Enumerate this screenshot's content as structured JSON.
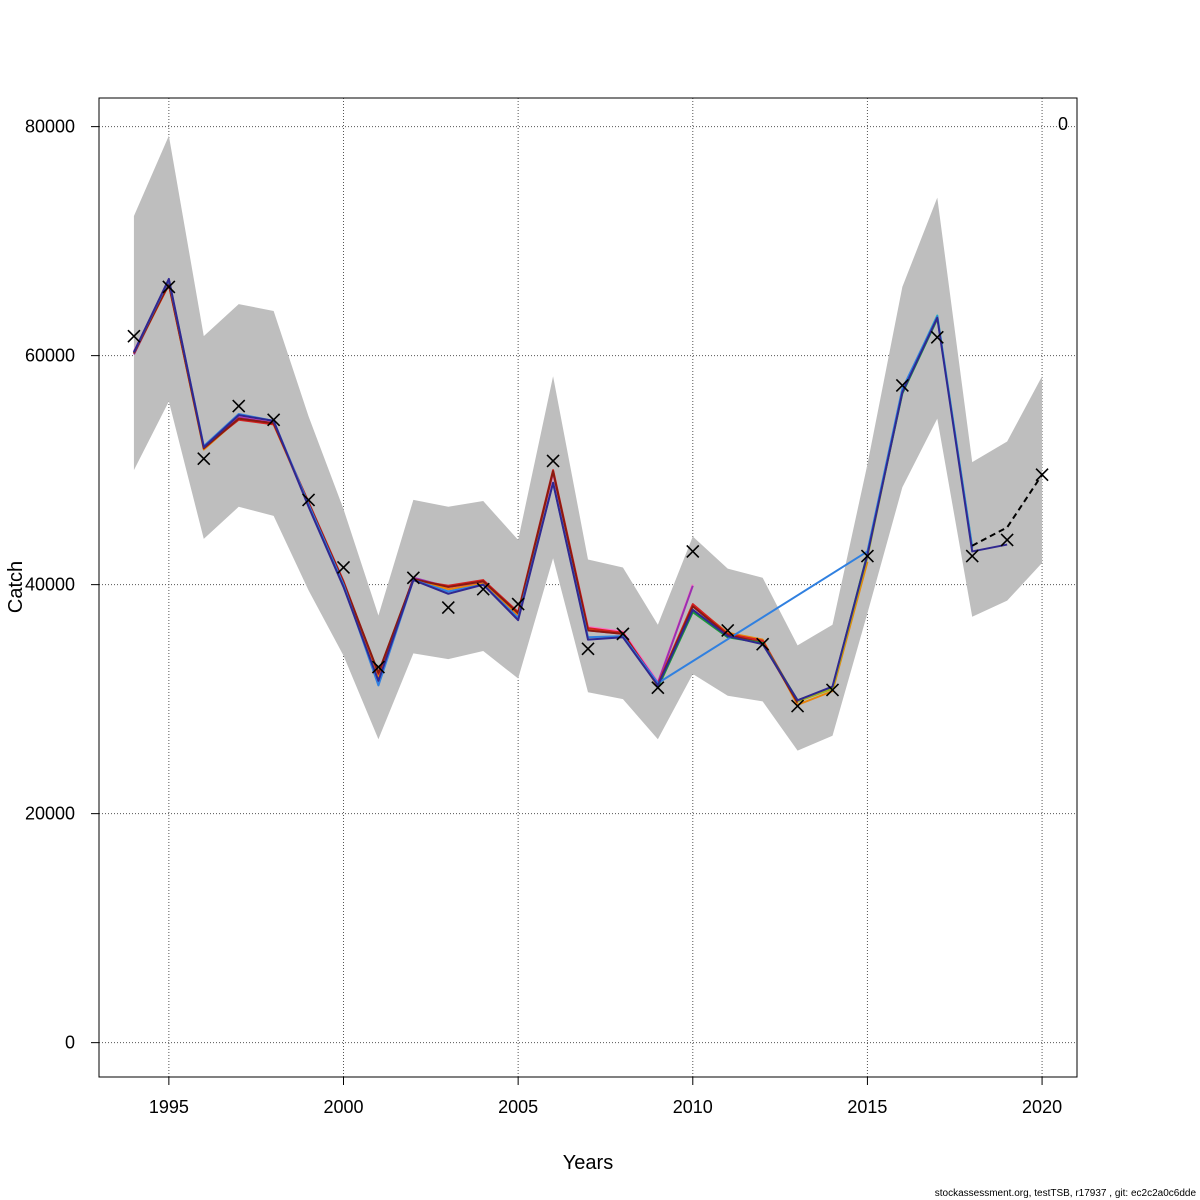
{
  "chart_data": {
    "type": "line",
    "title": "",
    "xlabel": "Years",
    "ylabel": "Catch",
    "xlim": [
      1993,
      2021
    ],
    "ylim": [
      -3000,
      82500
    ],
    "x_ticks": [
      1995,
      2000,
      2005,
      2010,
      2015,
      2020
    ],
    "y_ticks": [
      0,
      20000,
      40000,
      60000,
      80000
    ],
    "x_tick_labels": [
      "1995",
      "2000",
      "2005",
      "2010",
      "2015",
      "2020"
    ],
    "y_tick_labels": [
      "0",
      "20000",
      "40000",
      "60000",
      "80000"
    ],
    "grid": true,
    "corner_label": "0",
    "footer": "stockassessment.org, testTSB, r17937 , git: ec2c2a0c6dde",
    "band_color": "#bebebe",
    "confidence_band": {
      "x": [
        1994,
        1995,
        1996,
        1997,
        1998,
        1999,
        2000,
        2001,
        2002,
        2003,
        2004,
        2005,
        2006,
        2007,
        2008,
        2009,
        2010,
        2011,
        2012,
        2013,
        2014,
        2015,
        2016,
        2017,
        2018,
        2019,
        2020
      ],
      "lower": [
        50000,
        56000,
        44000,
        46800,
        46000,
        39500,
        33800,
        26500,
        34000,
        33500,
        34200,
        31800,
        42300,
        30600,
        30000,
        26500,
        32200,
        30300,
        29800,
        25500,
        26800,
        37500,
        48500,
        54500,
        37200,
        38600,
        41900
      ],
      "upper": [
        72200,
        79200,
        61700,
        64500,
        63900,
        54700,
        46600,
        37300,
        47400,
        46800,
        47300,
        43900,
        58200,
        42200,
        41500,
        36500,
        44200,
        41400,
        40600,
        34700,
        36500,
        50500,
        66000,
        73800,
        50700,
        52500,
        58200
      ]
    },
    "observed": {
      "x": [
        1994,
        1995,
        1996,
        1997,
        1998,
        1999,
        2000,
        2001,
        2002,
        2003,
        2004,
        2005,
        2006,
        2007,
        2008,
        2009,
        2010,
        2011,
        2012,
        2013,
        2014,
        2015,
        2016,
        2017,
        2018,
        2019,
        2020
      ],
      "y": [
        61700,
        66000,
        51000,
        55600,
        54400,
        47400,
        41500,
        32800,
        40600,
        38000,
        39600,
        38300,
        50800,
        34400,
        35700,
        31000,
        42900,
        36000,
        34800,
        29400,
        30800,
        42500,
        57400,
        61600,
        42500,
        43900,
        49600
      ]
    },
    "series": [
      {
        "color": "#ff6ec7",
        "x": [
          1994,
          1995,
          1996,
          1997,
          1998,
          1999,
          2000,
          2001,
          2002,
          2003,
          2004,
          2005,
          2006,
          2007,
          2008,
          2009,
          2010
        ],
        "y": [
          60400,
          66400,
          52000,
          54700,
          54200,
          47100,
          40200,
          31500,
          40500,
          39700,
          40300,
          37000,
          49700,
          36300,
          35900,
          31500,
          40000
        ]
      },
      {
        "color": "#9b30b0",
        "x": [
          1994,
          1995,
          1996,
          1997,
          1998,
          1999,
          2000,
          2001,
          2002,
          2003,
          2004,
          2005,
          2006,
          2007,
          2008,
          2009,
          2010
        ],
        "y": [
          60100,
          66300,
          51900,
          54600,
          54100,
          46900,
          40000,
          31800,
          40600,
          39800,
          40200,
          37400,
          49800,
          36000,
          35700,
          31400,
          39900
        ]
      },
      {
        "color": "#e8850a",
        "x": [
          1994,
          1995,
          1996,
          1997,
          1998,
          1999,
          2000,
          2001,
          2002,
          2003,
          2004,
          2005,
          2006,
          2007,
          2008,
          2009,
          2010,
          2011,
          2012,
          2013,
          2014,
          2015
        ],
        "y": [
          60200,
          66200,
          51800,
          54500,
          54000,
          47000,
          40100,
          32000,
          40500,
          39600,
          40100,
          37300,
          49900,
          36100,
          35800,
          31100,
          38200,
          35800,
          35200,
          29500,
          30700,
          42000
        ]
      },
      {
        "color": "#d42020",
        "x": [
          1994,
          1995,
          1996,
          1997,
          1998,
          1999,
          2000,
          2001,
          2002,
          2003,
          2004,
          2005,
          2006,
          2007,
          2008,
          2009,
          2010,
          2011,
          2012,
          2013
        ],
        "y": [
          60300,
          66200,
          52000,
          54400,
          54000,
          47200,
          40300,
          32200,
          40400,
          39900,
          40400,
          37600,
          50000,
          36200,
          35800,
          31300,
          38300,
          35700,
          35100,
          29800
        ]
      },
      {
        "color": "#8a1a10",
        "x": [
          1994,
          1995,
          1996,
          1997,
          1998,
          1999,
          2000,
          2001,
          2002,
          2003,
          2004,
          2005,
          2006,
          2007,
          2008,
          2009,
          2010,
          2011,
          2012,
          2013
        ],
        "y": [
          60200,
          66300,
          51900,
          54500,
          54100,
          47100,
          40200,
          32300,
          40500,
          39800,
          40300,
          37500,
          49900,
          36000,
          35700,
          31200,
          38100,
          35600,
          34900,
          29700
        ]
      },
      {
        "color": "#1a9a3a",
        "x": [
          2009,
          2010,
          2011,
          2012,
          2013,
          2014,
          2015,
          2016,
          2017
        ],
        "y": [
          31000,
          37600,
          35400,
          34900,
          29900,
          31000,
          42700,
          56700,
          63200
        ]
      },
      {
        "color": "#a0b020",
        "x": [
          2013,
          2014,
          2015,
          2016,
          2017
        ],
        "y": [
          29800,
          30900,
          42400,
          56900,
          63300
        ]
      },
      {
        "color": "#20b0b8",
        "x": [
          2015,
          2016,
          2017,
          2018
        ],
        "y": [
          42800,
          57000,
          63500,
          43300
        ]
      },
      {
        "color": "#3080e0",
        "x": [
          1994,
          1995,
          1996,
          1997,
          1998,
          1999,
          2000,
          2001,
          2002,
          2003,
          2004,
          2005,
          2006,
          2007,
          2008,
          2009,
          2015,
          2016,
          2017,
          2018
        ],
        "y": [
          60300,
          66600,
          52100,
          54900,
          54300,
          47000,
          40000,
          31200,
          40400,
          39400,
          40000,
          37100,
          48900,
          35400,
          35500,
          31400,
          42900,
          57100,
          63400,
          43200
        ]
      },
      {
        "color": "#302890",
        "x": [
          1994,
          1995,
          1996,
          1997,
          1998,
          1999,
          2000,
          2001,
          2002,
          2003,
          2004,
          2005,
          2006,
          2007,
          2008,
          2009,
          2010,
          2011,
          2012,
          2013,
          2014,
          2015,
          2016,
          2017,
          2018,
          2019
        ],
        "y": [
          60300,
          66700,
          52000,
          54800,
          54300,
          46800,
          39800,
          31600,
          40400,
          39200,
          40000,
          36900,
          48900,
          35200,
          35400,
          31200,
          37800,
          35500,
          34800,
          29900,
          31100,
          42600,
          56800,
          63300,
          42900,
          43500
        ]
      },
      {
        "color": "#000000",
        "dashed": true,
        "x": [
          2018,
          2019,
          2020
        ],
        "y": [
          43400,
          45000,
          49600
        ]
      }
    ]
  }
}
